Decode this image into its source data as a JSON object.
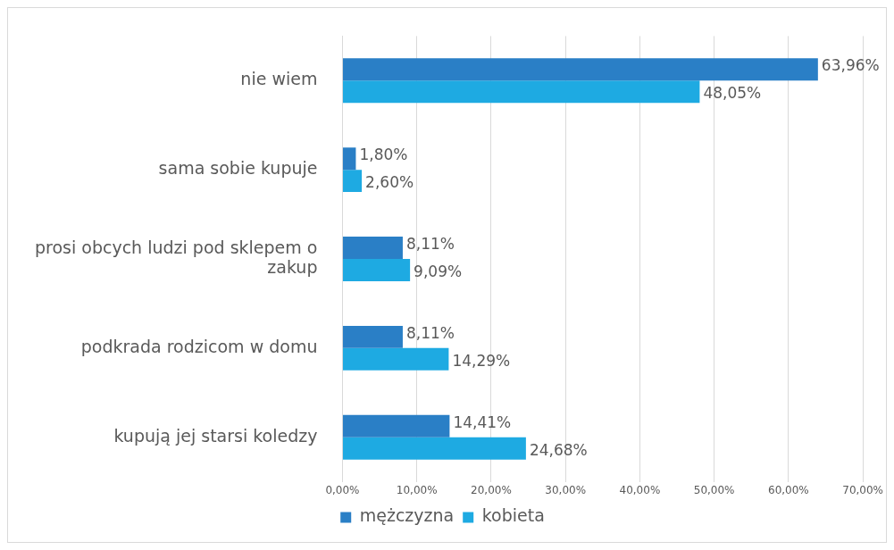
{
  "chart_data": {
    "type": "bar",
    "orientation": "horizontal",
    "categories": [
      "nie wiem",
      "sama sobie kupuje",
      "prosi obcych ludzi pod sklepem o zakup",
      "podkrada rodzicom w domu",
      "kupują jej starsi koledzy"
    ],
    "series": [
      {
        "name": "mężczyzna",
        "color": "#2a7fc6",
        "values": [
          63.96,
          1.8,
          8.11,
          8.11,
          14.41
        ],
        "value_labels": [
          "63,96%",
          "1,80%",
          "8,11%",
          "8,11%",
          "14,41%"
        ]
      },
      {
        "name": "kobieta",
        "color": "#1eaae2",
        "values": [
          48.05,
          2.6,
          9.09,
          14.29,
          24.68
        ],
        "value_labels": [
          "48,05%",
          "2,60%",
          "9,09%",
          "14,29%",
          "24,68%"
        ]
      }
    ],
    "xlim": [
      0,
      70
    ],
    "xticks": [
      {
        "value": 0,
        "label": "0,00%"
      },
      {
        "value": 10,
        "label": "10,00%"
      },
      {
        "value": 20,
        "label": "20,00%"
      },
      {
        "value": 30,
        "label": "30,00%"
      },
      {
        "value": 40,
        "label": "40,00%"
      },
      {
        "value": 50,
        "label": "50,00%"
      },
      {
        "value": 60,
        "label": "60,00%"
      },
      {
        "value": 70,
        "label": "70,00%"
      }
    ],
    "grid": "x",
    "legend": "bottom"
  }
}
